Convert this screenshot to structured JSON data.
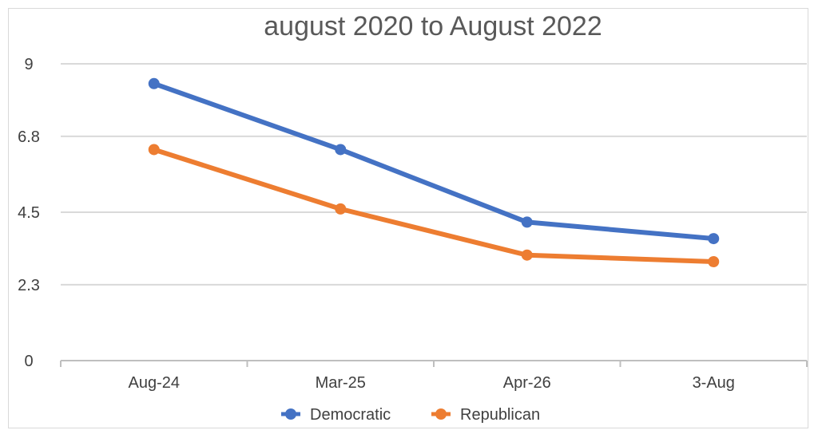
{
  "chart_data": {
    "type": "line",
    "title": "august 2020 to August 2022",
    "categories": [
      "Aug-24",
      "Mar-25",
      "Apr-26",
      "3-Aug"
    ],
    "y_ticks": [
      "0",
      "2.3",
      "4.5",
      "6.8",
      "9"
    ],
    "ylim": [
      0,
      9
    ],
    "grid": true,
    "legend_position": "bottom",
    "series": [
      {
        "name": "Democratic",
        "values": [
          8.4,
          6.4,
          4.2,
          3.7
        ],
        "color": "#4472c4"
      },
      {
        "name": "Republican",
        "values": [
          6.4,
          4.6,
          3.2,
          3.0
        ],
        "color": "#ed7d31"
      }
    ],
    "gridline_color": "#d9d9d9",
    "axis_color": "#bfbfbf"
  }
}
